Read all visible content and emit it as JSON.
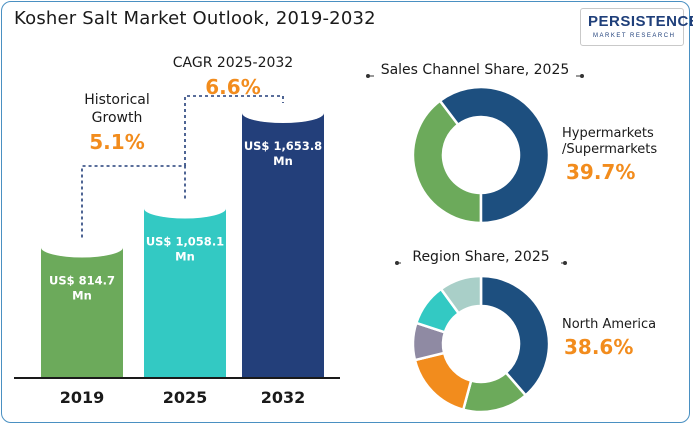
{
  "title": "Kosher Salt Market Outlook, 2019-2032",
  "logo": {
    "name": "PERSISTENCE",
    "tagline": "MARKET RESEARCH"
  },
  "colors": {
    "green": "#6caa5b",
    "teal": "#33c9c3",
    "navy": "#233f7a",
    "orange": "#f28c1d",
    "dark_blue": "#1d4f7f"
  },
  "annotations": {
    "historical_label": "Historical\nGrowth",
    "historical_value": "5.1%",
    "cagr_label": "CAGR 2025-2032",
    "cagr_value": "6.6%"
  },
  "right": {
    "sales_title": "Sales Channel Share, 2025",
    "sales_callout_label": "Hypermarkets\n/Supermarkets",
    "sales_callout_value": "39.7%",
    "region_title": "Region Share, 2025",
    "region_callout_label": "North America",
    "region_callout_value": "38.6%"
  },
  "chart_data": [
    {
      "type": "bar",
      "title": "Kosher Salt Market Outlook, 2019-2032",
      "categories": [
        "2019",
        "2025",
        "2032"
      ],
      "values": [
        814.7,
        1058.1,
        1653.8
      ],
      "labels": [
        "US$ 814.7\nMn",
        "US$ 1,058.1\nMn",
        "US$ 1,653.8\nMn"
      ],
      "colors": [
        "#6caa5b",
        "#33c9c3",
        "#233f7a"
      ]
    },
    {
      "type": "pie",
      "title": "Sales Channel Share, 2025",
      "slices": [
        {
          "value": 39.7,
          "color": "#6caa5b"
        },
        {
          "value": 60.3,
          "color": "#1d4f7f"
        }
      ]
    },
    {
      "type": "pie",
      "title": "Region Share, 2025",
      "slices": [
        {
          "value": 38.6,
          "color": "#1d4f7f"
        },
        {
          "value": 15.6,
          "color": "#6caa5b"
        },
        {
          "value": 17.0,
          "color": "#f28c1d"
        },
        {
          "value": 8.8,
          "color": "#8f8aa3"
        },
        {
          "value": 10.0,
          "color": "#33c9c3"
        },
        {
          "value": 10.0,
          "color": "#a9cfc8"
        }
      ]
    }
  ]
}
